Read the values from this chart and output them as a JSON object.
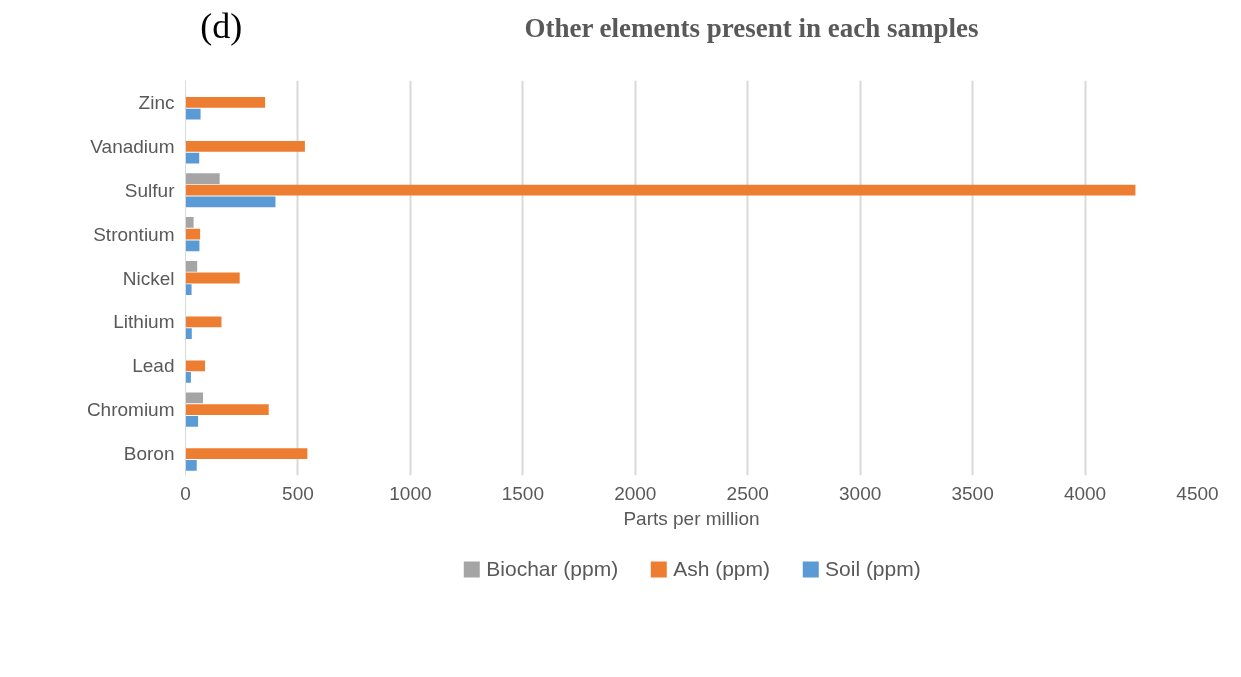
{
  "chart_data": {
    "type": "bar",
    "orientation": "horizontal",
    "title": "Other elements present in each samples",
    "xlabel": "Parts per million",
    "annotations": [
      "(d)"
    ],
    "categories": [
      "Zinc",
      "Vanadium",
      "Sulfur",
      "Strontium",
      "Nickel",
      "Lithium",
      "Lead",
      "Chromium",
      "Boron"
    ],
    "series": [
      {
        "name": "Biochar (ppm)",
        "color": "#a5a5a5",
        "values": [
          null,
          null,
          152,
          36,
          52,
          null,
          null,
          78,
          null
        ]
      },
      {
        "name": "Ash (ppm)",
        "color": "#ed7d31",
        "values": [
          354,
          531,
          4224,
          65,
          241,
          160,
          87,
          370,
          542
        ]
      },
      {
        "name": "Soil (ppm)",
        "color": "#5b9bd5",
        "values": [
          67,
          61,
          400,
          62,
          27,
          28,
          24,
          56,
          50
        ]
      }
    ],
    "xlim": [
      0,
      4500
    ],
    "xticks": [
      0,
      500,
      1000,
      1500,
      2000,
      2500,
      3000,
      3500,
      4000,
      4500
    ],
    "grid": "x",
    "legend": "bottom"
  }
}
